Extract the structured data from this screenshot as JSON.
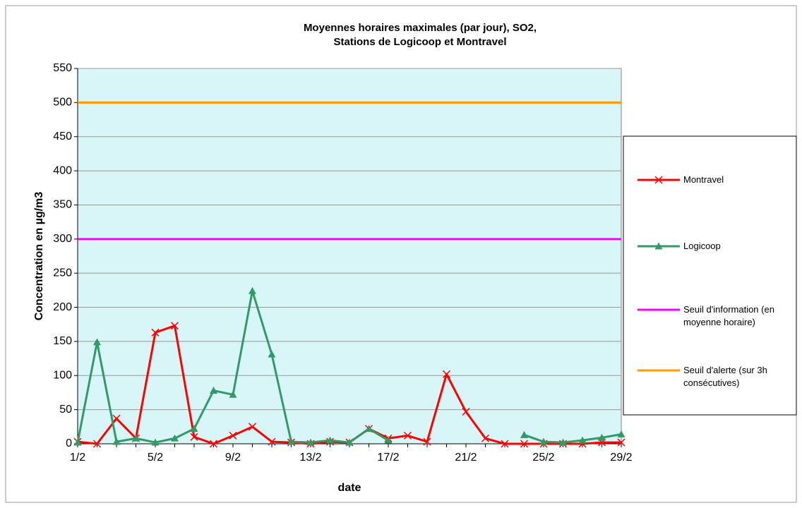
{
  "chart_data": {
    "type": "line",
    "title": [
      "Moyennes horaires maximales (par jour), SO2,",
      "Stations de Logicoop et Montravel"
    ],
    "x_label": "date",
    "y_label": "Concentration en µg/m3",
    "categories": [
      "1/2",
      null,
      null,
      null,
      "5/2",
      null,
      null,
      null,
      "9/2",
      null,
      null,
      null,
      "13/2",
      null,
      null,
      null,
      "17/2",
      null,
      null,
      null,
      "21/2",
      null,
      null,
      null,
      "25/2",
      null,
      null,
      null,
      "29/2"
    ],
    "ylim": [
      0,
      550
    ],
    "yticks": [
      0,
      50,
      100,
      150,
      200,
      250,
      300,
      350,
      400,
      450,
      500,
      550
    ],
    "grid": true,
    "legend": "right",
    "series": [
      {
        "name": "Montravel",
        "color": "#ff0000",
        "marker": "x",
        "values": [
          3,
          0,
          37,
          8,
          163,
          173,
          10,
          0,
          12,
          25,
          3,
          2,
          0,
          3,
          2,
          22,
          8,
          12,
          3,
          102,
          47,
          8,
          0,
          0,
          0,
          0,
          0,
          2,
          2
        ]
      },
      {
        "name": "Logicoop",
        "color": "#339966",
        "marker": "triangle",
        "values": [
          2,
          149,
          3,
          8,
          2,
          8,
          22,
          78,
          72,
          224,
          131,
          3,
          2,
          5,
          2,
          22,
          5,
          null,
          null,
          null,
          null,
          null,
          null,
          13,
          3,
          2,
          5,
          9,
          14
        ]
      },
      {
        "name": "Seuil d'information (en moyenne horaire)",
        "color": "#ff00ff",
        "marker": null,
        "values": [
          300,
          300,
          300,
          300,
          300,
          300,
          300,
          300,
          300,
          300,
          300,
          300,
          300,
          300,
          300,
          300,
          300,
          300,
          300,
          300,
          300,
          300,
          300,
          300,
          300,
          300,
          300,
          300,
          300
        ]
      },
      {
        "name": "Seuil d'alerte (sur 3h consécutives)",
        "color": "#ff9900",
        "marker": null,
        "values": [
          500,
          500,
          500,
          500,
          500,
          500,
          500,
          500,
          500,
          500,
          500,
          500,
          500,
          500,
          500,
          500,
          500,
          500,
          500,
          500,
          500,
          500,
          500,
          500,
          500,
          500,
          500,
          500,
          500
        ]
      }
    ]
  }
}
